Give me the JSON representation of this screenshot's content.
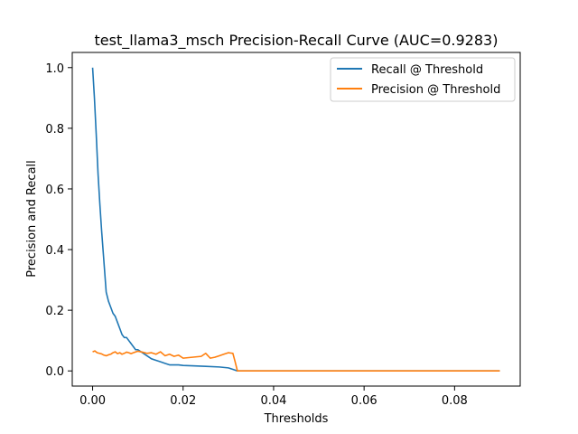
{
  "chart_data": {
    "type": "line",
    "title": "test_llama3_msch Precision-Recall Curve (AUC=0.9283)",
    "xlabel": "Thresholds",
    "ylabel": "Precision and Recall",
    "xlim": [
      -0.0045,
      0.0945
    ],
    "ylim": [
      -0.05,
      1.05
    ],
    "xticks": [
      0.0,
      0.02,
      0.04,
      0.06,
      0.08
    ],
    "xtick_labels": [
      "0.00",
      "0.02",
      "0.04",
      "0.06",
      "0.08"
    ],
    "yticks": [
      0.0,
      0.2,
      0.4,
      0.6,
      0.8,
      1.0
    ],
    "ytick_labels": [
      "0.0",
      "0.2",
      "0.4",
      "0.6",
      "0.8",
      "1.0"
    ],
    "grid": false,
    "legend_position": "top-right",
    "series": [
      {
        "name": "Recall @ Threshold",
        "color": "#1f77b4",
        "x": [
          0.0,
          0.0004,
          0.0008,
          0.0012,
          0.0016,
          0.002,
          0.0025,
          0.003,
          0.0035,
          0.004,
          0.0045,
          0.005,
          0.0055,
          0.006,
          0.0065,
          0.007,
          0.0075,
          0.008,
          0.0085,
          0.009,
          0.0095,
          0.01,
          0.0105,
          0.011,
          0.012,
          0.013,
          0.014,
          0.015,
          0.016,
          0.017,
          0.018,
          0.019,
          0.02,
          0.022,
          0.025,
          0.028,
          0.03,
          0.031,
          0.032,
          0.04,
          0.06,
          0.08,
          0.09
        ],
        "y": [
          1.0,
          0.9,
          0.78,
          0.65,
          0.55,
          0.46,
          0.36,
          0.26,
          0.23,
          0.21,
          0.19,
          0.18,
          0.16,
          0.14,
          0.12,
          0.11,
          0.11,
          0.1,
          0.09,
          0.08,
          0.07,
          0.07,
          0.065,
          0.06,
          0.05,
          0.04,
          0.035,
          0.03,
          0.025,
          0.02,
          0.02,
          0.02,
          0.018,
          0.017,
          0.015,
          0.013,
          0.01,
          0.005,
          0.0,
          0.0,
          0.0,
          0.0,
          0.0
        ]
      },
      {
        "name": "Precision @ Threshold",
        "color": "#ff7f0e",
        "x": [
          0.0,
          0.0005,
          0.001,
          0.0015,
          0.002,
          0.0025,
          0.003,
          0.0035,
          0.004,
          0.0045,
          0.005,
          0.0055,
          0.006,
          0.0065,
          0.007,
          0.0075,
          0.008,
          0.0085,
          0.009,
          0.01,
          0.011,
          0.012,
          0.013,
          0.014,
          0.015,
          0.016,
          0.017,
          0.018,
          0.019,
          0.02,
          0.022,
          0.024,
          0.025,
          0.026,
          0.027,
          0.028,
          0.029,
          0.03,
          0.031,
          0.0315,
          0.032,
          0.04,
          0.06,
          0.08,
          0.09
        ],
        "y": [
          0.063,
          0.066,
          0.06,
          0.058,
          0.056,
          0.052,
          0.05,
          0.053,
          0.055,
          0.06,
          0.063,
          0.057,
          0.06,
          0.055,
          0.058,
          0.062,
          0.06,
          0.057,
          0.06,
          0.065,
          0.062,
          0.058,
          0.06,
          0.055,
          0.063,
          0.05,
          0.055,
          0.048,
          0.052,
          0.042,
          0.045,
          0.048,
          0.058,
          0.042,
          0.045,
          0.05,
          0.055,
          0.06,
          0.058,
          0.03,
          0.0,
          0.0,
          0.0,
          0.0,
          0.0
        ]
      }
    ]
  }
}
